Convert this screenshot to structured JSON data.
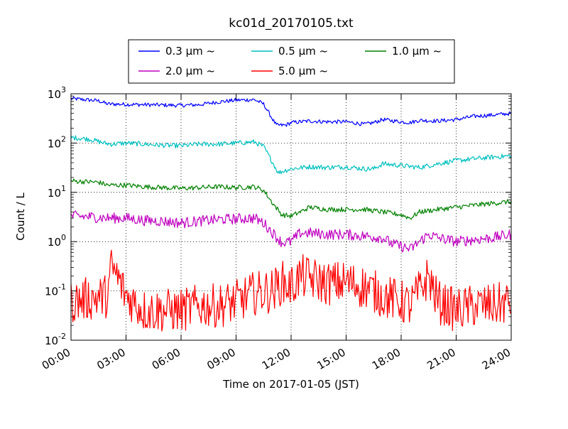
{
  "chart_data": {
    "type": "line",
    "title": "kc01d_20170105.txt",
    "xlabel": "Time on 2017-01-05 (JST)",
    "ylabel": "Count / L",
    "yscale": "log",
    "ylim": [
      0.01,
      1000
    ],
    "xlim": [
      "00:00",
      "24:00"
    ],
    "grid": true,
    "legend_position": "top",
    "x_ticks": [
      "00:00",
      "03:00",
      "06:00",
      "09:00",
      "12:00",
      "15:00",
      "18:00",
      "21:00",
      "24:00"
    ],
    "y_ticks": [
      {
        "value": 0.01,
        "base": "10",
        "exp": "-2"
      },
      {
        "value": 0.1,
        "base": "10",
        "exp": "-1"
      },
      {
        "value": 1,
        "base": "10",
        "exp": "0"
      },
      {
        "value": 10,
        "base": "10",
        "exp": "1"
      },
      {
        "value": 100,
        "base": "10",
        "exp": "2"
      },
      {
        "value": 1000,
        "base": "10",
        "exp": "3"
      }
    ],
    "series": [
      {
        "name": "0.3 μm ~",
        "color": "#0000ff",
        "noise": 0.04,
        "points": [
          [
            0.0,
            800
          ],
          [
            1.5,
            720
          ],
          [
            2.0,
            620
          ],
          [
            4.0,
            600
          ],
          [
            6.0,
            580
          ],
          [
            7.0,
            600
          ],
          [
            8.0,
            680
          ],
          [
            9.0,
            740
          ],
          [
            10.0,
            760
          ],
          [
            10.5,
            620
          ],
          [
            11.0,
            300
          ],
          [
            11.2,
            230
          ],
          [
            11.7,
            230
          ],
          [
            12.0,
            260
          ],
          [
            13.0,
            280
          ],
          [
            14.0,
            270
          ],
          [
            15.0,
            270
          ],
          [
            16.0,
            240
          ],
          [
            16.5,
            260
          ],
          [
            17.0,
            300
          ],
          [
            18.0,
            270
          ],
          [
            18.5,
            260
          ],
          [
            19.0,
            290
          ],
          [
            20.0,
            280
          ],
          [
            21.0,
            300
          ],
          [
            22.0,
            350
          ],
          [
            23.0,
            370
          ],
          [
            24.0,
            400
          ]
        ]
      },
      {
        "name": "0.5 μm ~",
        "color": "#00bfbf",
        "noise": 0.05,
        "points": [
          [
            0.0,
            130
          ],
          [
            1.0,
            120
          ],
          [
            1.8,
            100
          ],
          [
            2.2,
            95
          ],
          [
            3.0,
            100
          ],
          [
            4.0,
            95
          ],
          [
            5.0,
            90
          ],
          [
            6.0,
            88
          ],
          [
            7.0,
            95
          ],
          [
            8.0,
            95
          ],
          [
            9.0,
            100
          ],
          [
            10.0,
            105
          ],
          [
            10.5,
            85
          ],
          [
            11.0,
            40
          ],
          [
            11.3,
            25
          ],
          [
            11.7,
            28
          ],
          [
            12.0,
            30
          ],
          [
            13.0,
            33
          ],
          [
            14.0,
            32
          ],
          [
            15.0,
            33
          ],
          [
            16.0,
            30
          ],
          [
            16.5,
            30
          ],
          [
            17.0,
            38
          ],
          [
            18.0,
            35
          ],
          [
            19.0,
            32
          ],
          [
            20.0,
            38
          ],
          [
            21.0,
            44
          ],
          [
            22.0,
            48
          ],
          [
            23.0,
            52
          ],
          [
            24.0,
            55
          ]
        ]
      },
      {
        "name": "1.0 μm ~",
        "color": "#008000",
        "noise": 0.05,
        "points": [
          [
            0.0,
            17
          ],
          [
            1.5,
            16
          ],
          [
            2.0,
            14
          ],
          [
            3.0,
            14
          ],
          [
            4.0,
            13
          ],
          [
            5.0,
            12.5
          ],
          [
            6.0,
            12
          ],
          [
            7.0,
            12.5
          ],
          [
            8.0,
            13
          ],
          [
            9.0,
            12.5
          ],
          [
            10.0,
            13
          ],
          [
            10.5,
            11
          ],
          [
            11.0,
            6
          ],
          [
            11.5,
            3.5
          ],
          [
            12.0,
            3.3
          ],
          [
            12.5,
            4
          ],
          [
            13.0,
            5
          ],
          [
            14.0,
            4.5
          ],
          [
            15.0,
            4.5
          ],
          [
            16.0,
            4.5
          ],
          [
            17.0,
            4
          ],
          [
            18.0,
            3.5
          ],
          [
            18.5,
            3.0
          ],
          [
            19.0,
            4
          ],
          [
            20.0,
            4.5
          ],
          [
            21.0,
            5
          ],
          [
            22.0,
            5.5
          ],
          [
            23.0,
            6
          ],
          [
            24.0,
            6.5
          ]
        ]
      },
      {
        "name": "2.0 μm ~",
        "color": "#bf00bf",
        "noise": 0.11,
        "points": [
          [
            0.0,
            3.3
          ],
          [
            1.0,
            3.2
          ],
          [
            2.0,
            3.0
          ],
          [
            3.0,
            3.0
          ],
          [
            4.0,
            2.7
          ],
          [
            5.0,
            2.6
          ],
          [
            6.0,
            2.4
          ],
          [
            7.0,
            2.6
          ],
          [
            8.0,
            2.8
          ],
          [
            9.0,
            2.9
          ],
          [
            10.0,
            3.0
          ],
          [
            10.5,
            2.4
          ],
          [
            11.0,
            1.5
          ],
          [
            11.5,
            0.95
          ],
          [
            12.0,
            1.0
          ],
          [
            12.5,
            1.5
          ],
          [
            13.0,
            1.5
          ],
          [
            14.0,
            1.4
          ],
          [
            15.0,
            1.4
          ],
          [
            16.0,
            1.3
          ],
          [
            17.0,
            1.2
          ],
          [
            17.5,
            0.9
          ],
          [
            18.0,
            0.8
          ],
          [
            18.5,
            0.7
          ],
          [
            19.0,
            1.0
          ],
          [
            19.5,
            1.4
          ],
          [
            20.0,
            1.2
          ],
          [
            21.0,
            1.0
          ],
          [
            22.0,
            1.1
          ],
          [
            23.0,
            1.2
          ],
          [
            24.0,
            1.4
          ]
        ]
      },
      {
        "name": "5.0 μm ~",
        "color": "#ff0000",
        "noise": 0.45,
        "points": [
          [
            0.0,
            0.06
          ],
          [
            1.0,
            0.07
          ],
          [
            2.0,
            0.08
          ],
          [
            2.2,
            0.3
          ],
          [
            2.5,
            0.2
          ],
          [
            3.0,
            0.08
          ],
          [
            4.0,
            0.04
          ],
          [
            5.0,
            0.04
          ],
          [
            6.0,
            0.04
          ],
          [
            7.0,
            0.05
          ],
          [
            8.0,
            0.05
          ],
          [
            9.0,
            0.06
          ],
          [
            10.0,
            0.09
          ],
          [
            11.0,
            0.1
          ],
          [
            11.5,
            0.15
          ],
          [
            12.0,
            0.12
          ],
          [
            12.5,
            0.2
          ],
          [
            13.0,
            0.18
          ],
          [
            14.0,
            0.14
          ],
          [
            15.0,
            0.15
          ],
          [
            16.0,
            0.12
          ],
          [
            17.0,
            0.08
          ],
          [
            18.0,
            0.06
          ],
          [
            18.5,
            0.05
          ],
          [
            19.0,
            0.1
          ],
          [
            19.5,
            0.2
          ],
          [
            20.0,
            0.06
          ],
          [
            21.0,
            0.04
          ],
          [
            22.0,
            0.05
          ],
          [
            23.0,
            0.05
          ],
          [
            24.0,
            0.06
          ]
        ]
      }
    ]
  }
}
